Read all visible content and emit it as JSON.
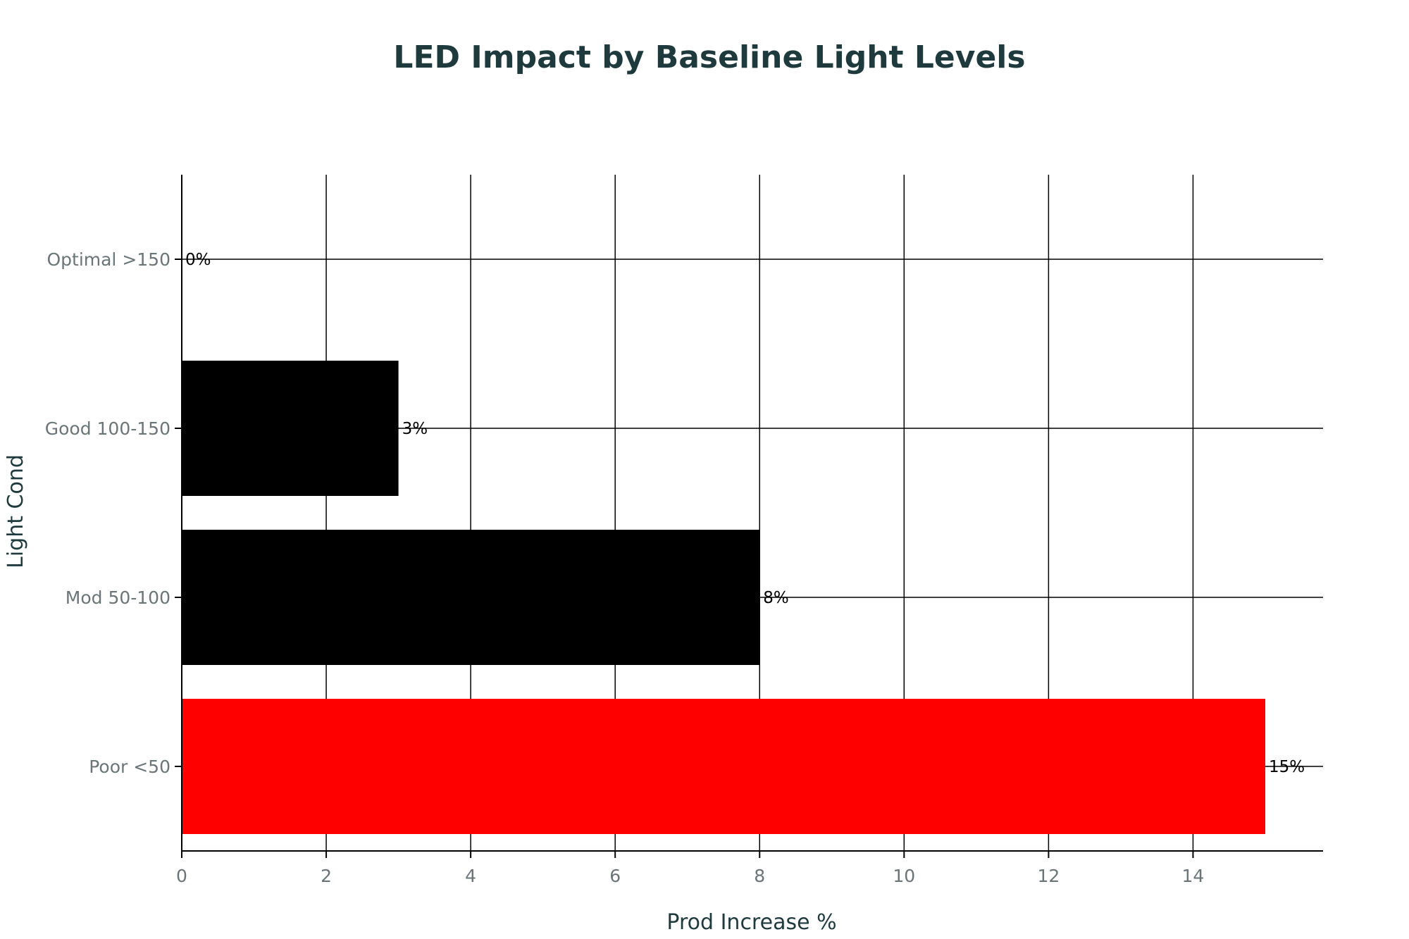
{
  "chart_data": {
    "type": "bar",
    "orientation": "horizontal",
    "title": "LED Impact by Baseline Light Levels",
    "xlabel": "Prod Increase %",
    "ylabel": "Light Cond",
    "categories": [
      "Poor <50",
      "Mod 50-100",
      "Good 100-150",
      "Optimal >150"
    ],
    "values": [
      15,
      8,
      3,
      0
    ],
    "data_labels": [
      "15%",
      "8%",
      "3%",
      "0%"
    ],
    "bar_colors": [
      "#ff0000",
      "#000000",
      "#000000",
      "#000000"
    ],
    "xlim": [
      0,
      15.8
    ],
    "x_ticks": [
      0,
      2,
      4,
      6,
      8,
      10,
      12,
      14
    ],
    "grid": true,
    "legend": "none"
  },
  "colors": {
    "title": "#1f3a3d",
    "axis_title": "#1f3a3d",
    "tick_label": "#6b7578",
    "grid": "#000000",
    "data_label": "#000000",
    "background": "#ffffff"
  }
}
